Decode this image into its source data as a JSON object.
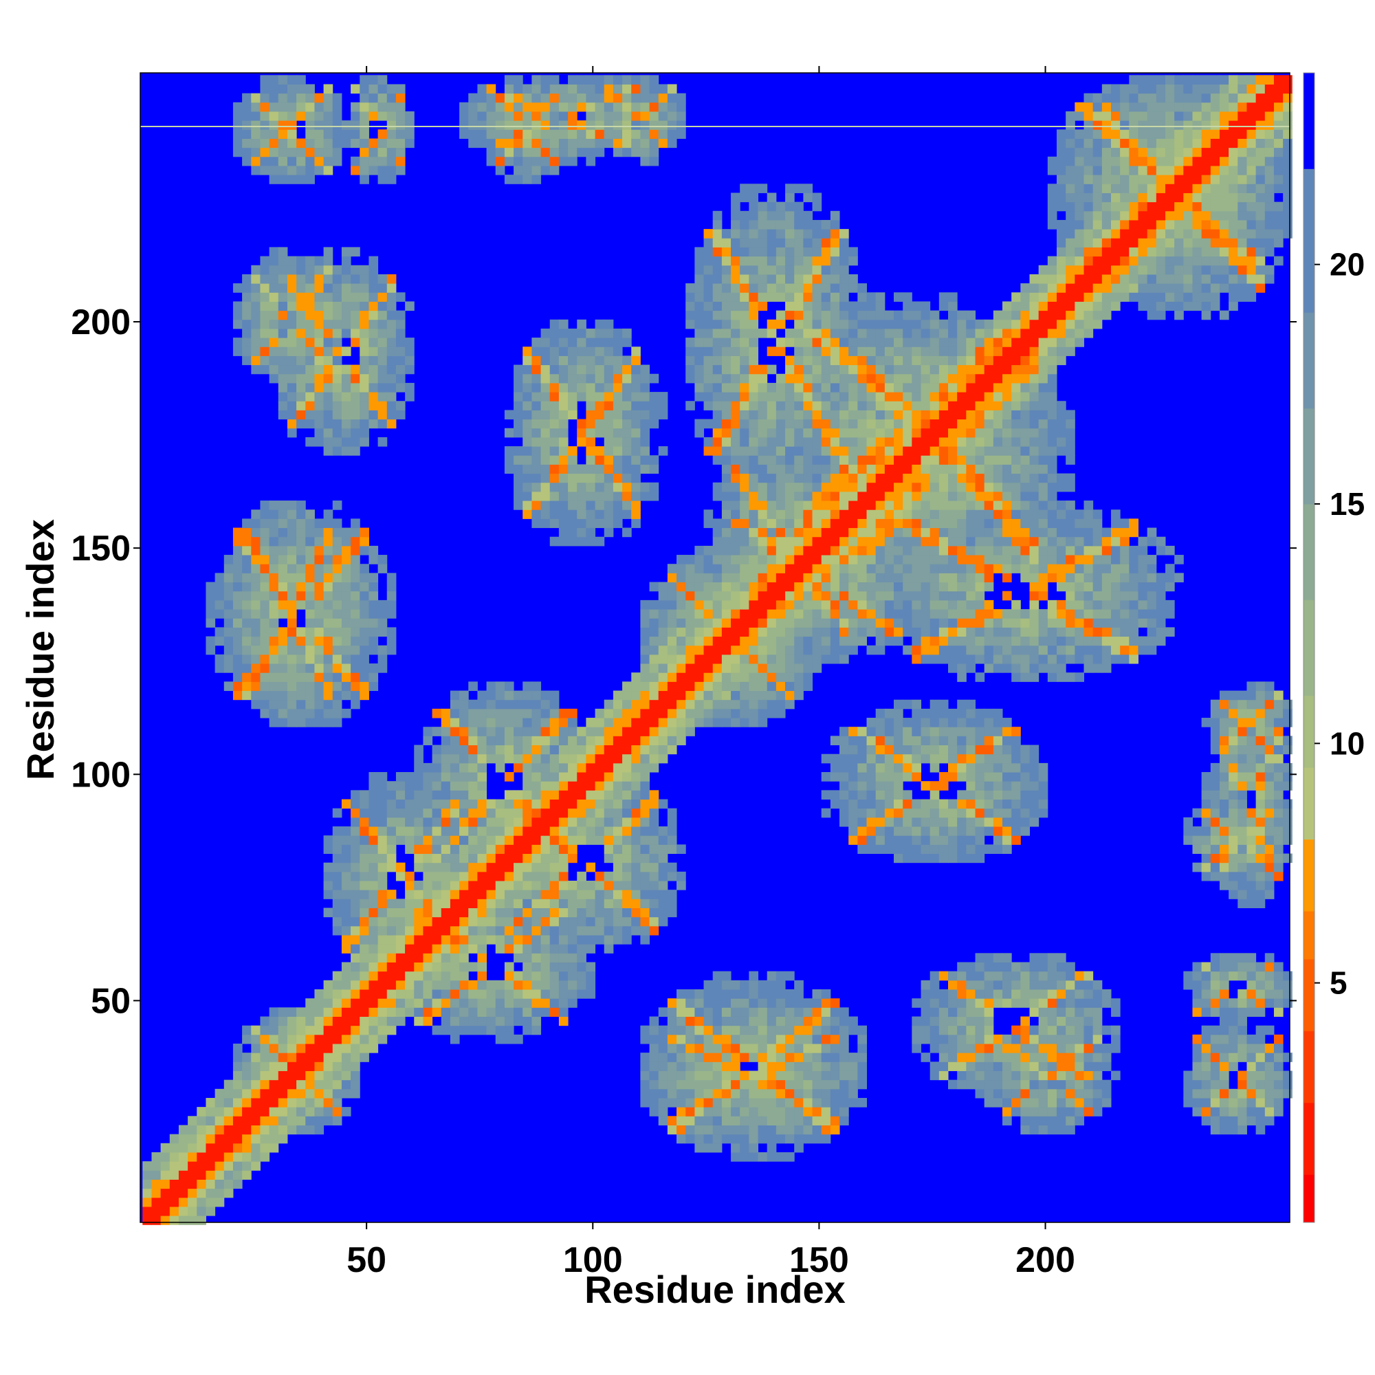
{
  "chart_data": {
    "type": "heatmap",
    "title": "",
    "xlabel": "Residue index",
    "ylabel": "Residue index",
    "x_ticks": [
      50,
      100,
      150,
      200
    ],
    "y_ticks": [
      50,
      100,
      150,
      200
    ],
    "xlim": [
      1,
      254
    ],
    "ylim": [
      1,
      254
    ],
    "n_residues": 254,
    "colorbar": {
      "ticks": [
        5,
        10,
        15,
        20
      ],
      "range": [
        0,
        24
      ],
      "levels": [
        {
          "max": 1.0,
          "color": "#ff0000"
        },
        {
          "max": 2.5,
          "color": "#ff1a00"
        },
        {
          "max": 4.0,
          "color": "#ff3c00"
        },
        {
          "max": 5.5,
          "color": "#ff5e00"
        },
        {
          "max": 6.5,
          "color": "#ff7a00"
        },
        {
          "max": 8.0,
          "color": "#ff9900"
        },
        {
          "max": 9.5,
          "color": "#b5c47a"
        },
        {
          "max": 11.0,
          "color": "#a8bd80"
        },
        {
          "max": 13.0,
          "color": "#9ab58a"
        },
        {
          "max": 15.0,
          "color": "#8dab94"
        },
        {
          "max": 17.0,
          "color": "#7f9fa0"
        },
        {
          "max": 19.0,
          "color": "#6f93ac"
        },
        {
          "max": 22.0,
          "color": "#5f86b8"
        },
        {
          "max": 24.0,
          "color": "#0000ff"
        }
      ],
      "background": "#0000ff"
    },
    "diagonal_band_width": 3,
    "contact_blocks": [
      {
        "x": [
          20,
          48
        ],
        "y": [
          20,
          48
        ]
      },
      {
        "x": [
          28,
          60
        ],
        "y": [
          170,
          215
        ]
      },
      {
        "x": [
          55,
          100
        ],
        "y": [
          40,
          75
        ]
      },
      {
        "x": [
          75,
          120
        ],
        "y": [
          60,
          100
        ]
      },
      {
        "x": [
          110,
          150
        ],
        "y": [
          110,
          150
        ]
      },
      {
        "x": [
          125,
          175
        ],
        "y": [
          125,
          160
        ]
      },
      {
        "x": [
          140,
          200
        ],
        "y": [
          150,
          205
        ]
      },
      {
        "x": [
          160,
          230
        ],
        "y": [
          120,
          160
        ]
      },
      {
        "x": [
          185,
          215
        ],
        "y": [
          20,
          45
        ]
      },
      {
        "x": [
          230,
          254
        ],
        "y": [
          20,
          45
        ]
      },
      {
        "x": [
          230,
          254
        ],
        "y": [
          45,
          60
        ]
      },
      {
        "x": [
          230,
          254
        ],
        "y": [
          75,
          95
        ]
      },
      {
        "x": [
          235,
          254
        ],
        "y": [
          100,
          120
        ]
      },
      {
        "x": [
          70,
          115
        ],
        "y": [
          235,
          254
        ]
      },
      {
        "x": [
          150,
          200
        ],
        "y": [
          80,
          115
        ]
      },
      {
        "x": [
          110,
          160
        ],
        "y": [
          20,
          45
        ]
      },
      {
        "x": [
          15,
          55
        ],
        "y": [
          110,
          160
        ]
      },
      {
        "x": [
          205,
          254
        ],
        "y": [
          200,
          254
        ]
      }
    ]
  }
}
